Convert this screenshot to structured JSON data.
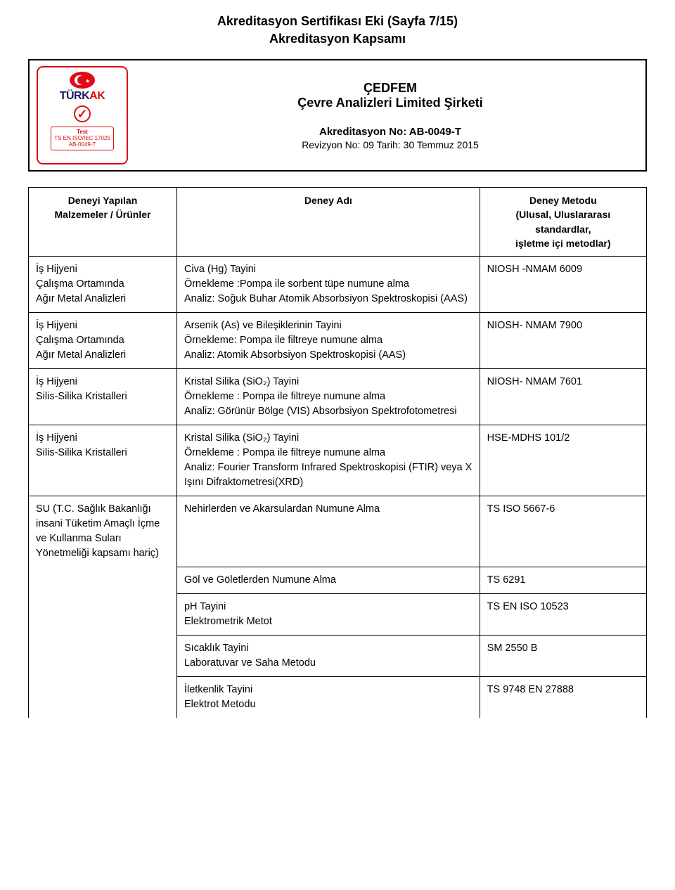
{
  "title_line1": "Akreditasyon Sertifikası Eki (Sayfa 7/15)",
  "title_line2": "Akreditasyon Kapsamı",
  "logo": {
    "brand_part1": "TÜRK",
    "brand_part2": "AK",
    "box_line1": "Test",
    "box_line2": "TS EN ISO/IEC 17025",
    "box_line3": "AB-0049-T"
  },
  "header": {
    "org_line1": "ÇEDFEM",
    "org_line2": "Çevre Analizleri Limited Şirketi",
    "acc_no": "Akreditasyon No: AB-0049-T",
    "revision": "Revizyon No: 09 Tarih: 30 Temmuz 2015"
  },
  "table_headers": {
    "col1_l1": "Deneyi Yapılan",
    "col1_l2": "Malzemeler / Ürünler",
    "col2": "Deney Adı",
    "col3_l1": "Deney Metodu",
    "col3_l2": "(Ulusal, Uluslararası standardlar,",
    "col3_l3": "işletme içi metodlar)"
  },
  "rows": [
    {
      "c1": "İş Hijyeni\nÇalışma Ortamında\nAğır Metal Analizleri",
      "c2": "Civa (Hg) Tayini\nÖrnekleme :Pompa ile sorbent tüpe numune alma\nAnaliz: Soğuk Buhar Atomik Absorbsiyon Spektroskopisi (AAS)",
      "c3": "NIOSH -NMAM 6009"
    },
    {
      "c1": "İş Hijyeni\nÇalışma Ortamında\nAğır Metal Analizleri",
      "c2": "Arsenik (As) ve Bileşiklerinin Tayini\nÖrnekleme: Pompa ile filtreye numune alma\nAnaliz: Atomik Absorbsiyon Spektroskopisi (AAS)",
      "c3": "NIOSH- NMAM 7900"
    },
    {
      "c1": "İş Hijyeni\nSilis-Silika Kristalleri",
      "c2": "Kristal Silika (SiO₂) Tayini\nÖrnekleme : Pompa ile filtreye numune alma\nAnaliz: Görünür Bölge (VIS) Absorbsiyon Spektrofotometresi",
      "c3": "NIOSH- NMAM 7601"
    },
    {
      "c1": "İş Hijyeni\nSilis-Silika Kristalleri",
      "c2": "Kristal Silika (SiO₂) Tayini\nÖrnekleme : Pompa ile filtreye numune alma\nAnaliz: Fourier Transform Infrared Spektroskopisi (FTIR) veya X Işını Difraktometresi(XRD)",
      "c3": "HSE-MDHS 101/2"
    },
    {
      "c1": "SU (T.C. Sağlık Bakanlığı insani Tüketim Amaçlı İçme ve Kullanma Suları Yönetmeliği kapsamı hariç)",
      "c2": "Nehirlerden ve Akarsulardan Numune Alma",
      "c3": "TS ISO 5667-6"
    },
    {
      "c1": "",
      "c2": "Göl ve Göletlerden Numune Alma",
      "c3": "TS 6291"
    },
    {
      "c1": "",
      "c2": "pH Tayini\nElektrometrik Metot",
      "c3": "TS EN ISO 10523"
    },
    {
      "c1": "",
      "c2": "Sıcaklık Tayini\nLaboratuvar ve Saha Metodu",
      "c3": "SM 2550 B"
    },
    {
      "c1": "",
      "c2": "İletkenlik Tayini\nElektrot Metodu",
      "c3": "TS 9748 EN 27888"
    }
  ]
}
